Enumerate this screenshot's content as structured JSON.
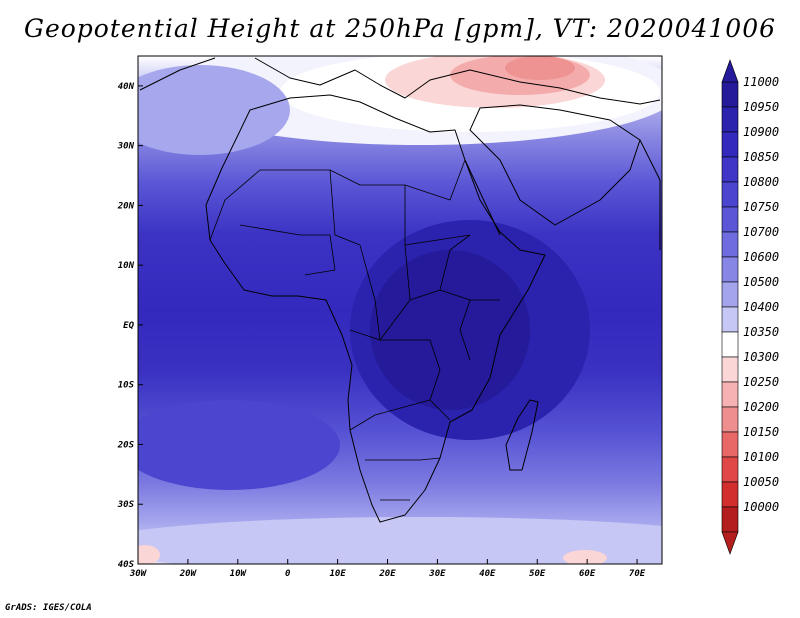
{
  "title": "Geopotential Height at 250hPa [gpm], VT: 2020041006",
  "credit": "GrADS: IGES/COLA",
  "map": {
    "lat_labels": [
      "40N",
      "30N",
      "20N",
      "10N",
      "EQ",
      "10S",
      "20S",
      "30S",
      "40S"
    ],
    "lon_labels": [
      "30W",
      "20W",
      "10W",
      "0",
      "10E",
      "20E",
      "30E",
      "40E",
      "50E",
      "60E",
      "70E"
    ],
    "lon_range": [
      -30,
      75
    ],
    "lat_range": [
      -40,
      45
    ],
    "land_outline_color": "#000000"
  },
  "colorbar": {
    "levels": [
      "11000",
      "10950",
      "10900",
      "10850",
      "10800",
      "10750",
      "10700",
      "10600",
      "10500",
      "10400",
      "10350",
      "10300",
      "10250",
      "10200",
      "10150",
      "10100",
      "10050",
      "10000"
    ],
    "colors": [
      "#241a9a",
      "#2b22ad",
      "#3329bd",
      "#3f36c7",
      "#4b45cf",
      "#5a56d6",
      "#6e6cde",
      "#8886e4",
      "#a4a4ed",
      "#c7c7f5",
      "#ffffff",
      "#fbd6d6",
      "#f6b2b2",
      "#ee8e8e",
      "#e86868",
      "#e04848",
      "#d22e2e",
      "#b41e1e"
    ]
  },
  "chart_data": {
    "type": "heatmap",
    "title": "Geopotential Height at 250hPa [gpm], VT: 2020041006",
    "variable": "Geopotential Height at 250hPa",
    "units": "gpm",
    "valid_time": "2020041006",
    "lon_range": [
      -30,
      75
    ],
    "lat_range": [
      -40,
      45
    ],
    "xlabel": "",
    "ylabel": "",
    "levels": [
      10000,
      10050,
      10100,
      10150,
      10200,
      10250,
      10300,
      10350,
      10400,
      10500,
      10600,
      10700,
      10750,
      10800,
      10850,
      10900,
      10950,
      11000
    ]
  }
}
